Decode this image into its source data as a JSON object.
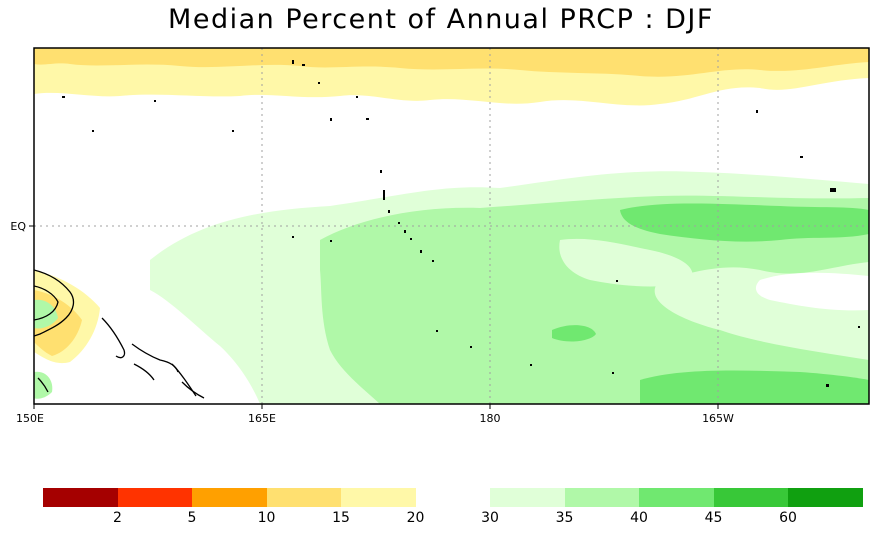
{
  "title": "Median Percent of Annual PRCP  :  DJF",
  "map": {
    "x_tick_labels": [
      "150E",
      "165E",
      "180",
      "165W"
    ],
    "y_tick_labels": [
      "EQ"
    ],
    "grid": "dotted"
  },
  "colorbar": {
    "colors": [
      "#a50000",
      "#ff3300",
      "#ffa000",
      "#ffe070",
      "#fff8a8",
      "#ffffff",
      "#e0ffd8",
      "#b0f8a8",
      "#70e870",
      "#38c838",
      "#10a010"
    ],
    "labels": [
      "2",
      "5",
      "10",
      "15",
      "20",
      "30",
      "35",
      "40",
      "45",
      "60"
    ]
  }
}
